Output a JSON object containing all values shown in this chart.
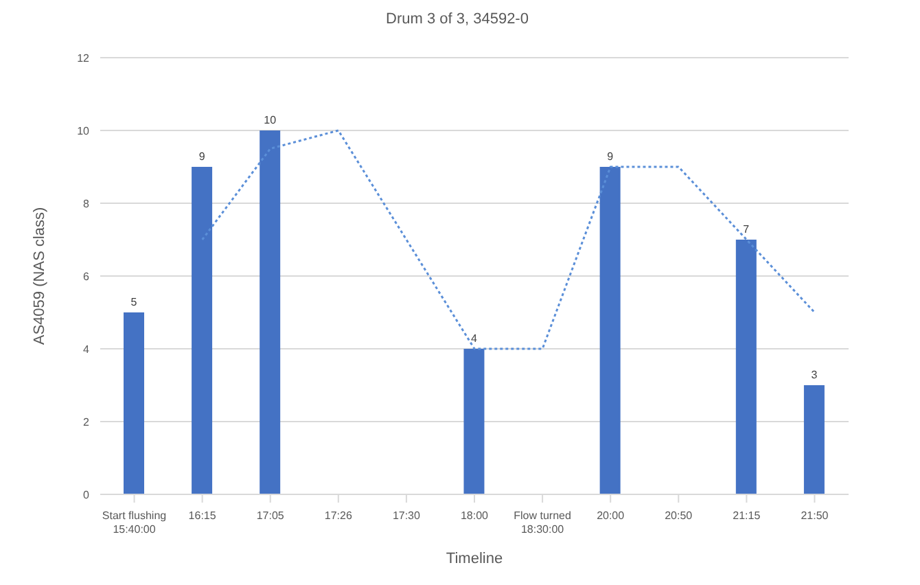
{
  "chart_data": {
    "type": "bar",
    "title": "Drum 3 of 3, 34592-0",
    "xlabel": "Timeline",
    "ylabel": "AS4059 (NAS class)",
    "categories": [
      "Start flushing\n15:40:00",
      "16:15",
      "17:05",
      "17:26",
      "17:30",
      "18:00",
      "Flow turned\n18:30:00",
      "20:00",
      "20:50",
      "21:15",
      "21:50"
    ],
    "series": [
      {
        "type": "line",
        "color": "#5b8fd8",
        "line_style": "dotted",
        "marker": "none",
        "values": [
          null,
          7,
          9.5,
          10,
          null,
          4,
          4,
          9,
          9,
          7,
          5
        ]
      },
      {
        "color": "#4472c4",
        "data_labels": true,
        "values": [
          5,
          9,
          10,
          null,
          null,
          4,
          null,
          9,
          null,
          7,
          3
        ]
      }
    ],
    "ylim": [
      0,
      12
    ],
    "yticks": [
      0,
      2,
      4,
      6,
      8,
      10,
      12
    ],
    "grid": "y"
  }
}
